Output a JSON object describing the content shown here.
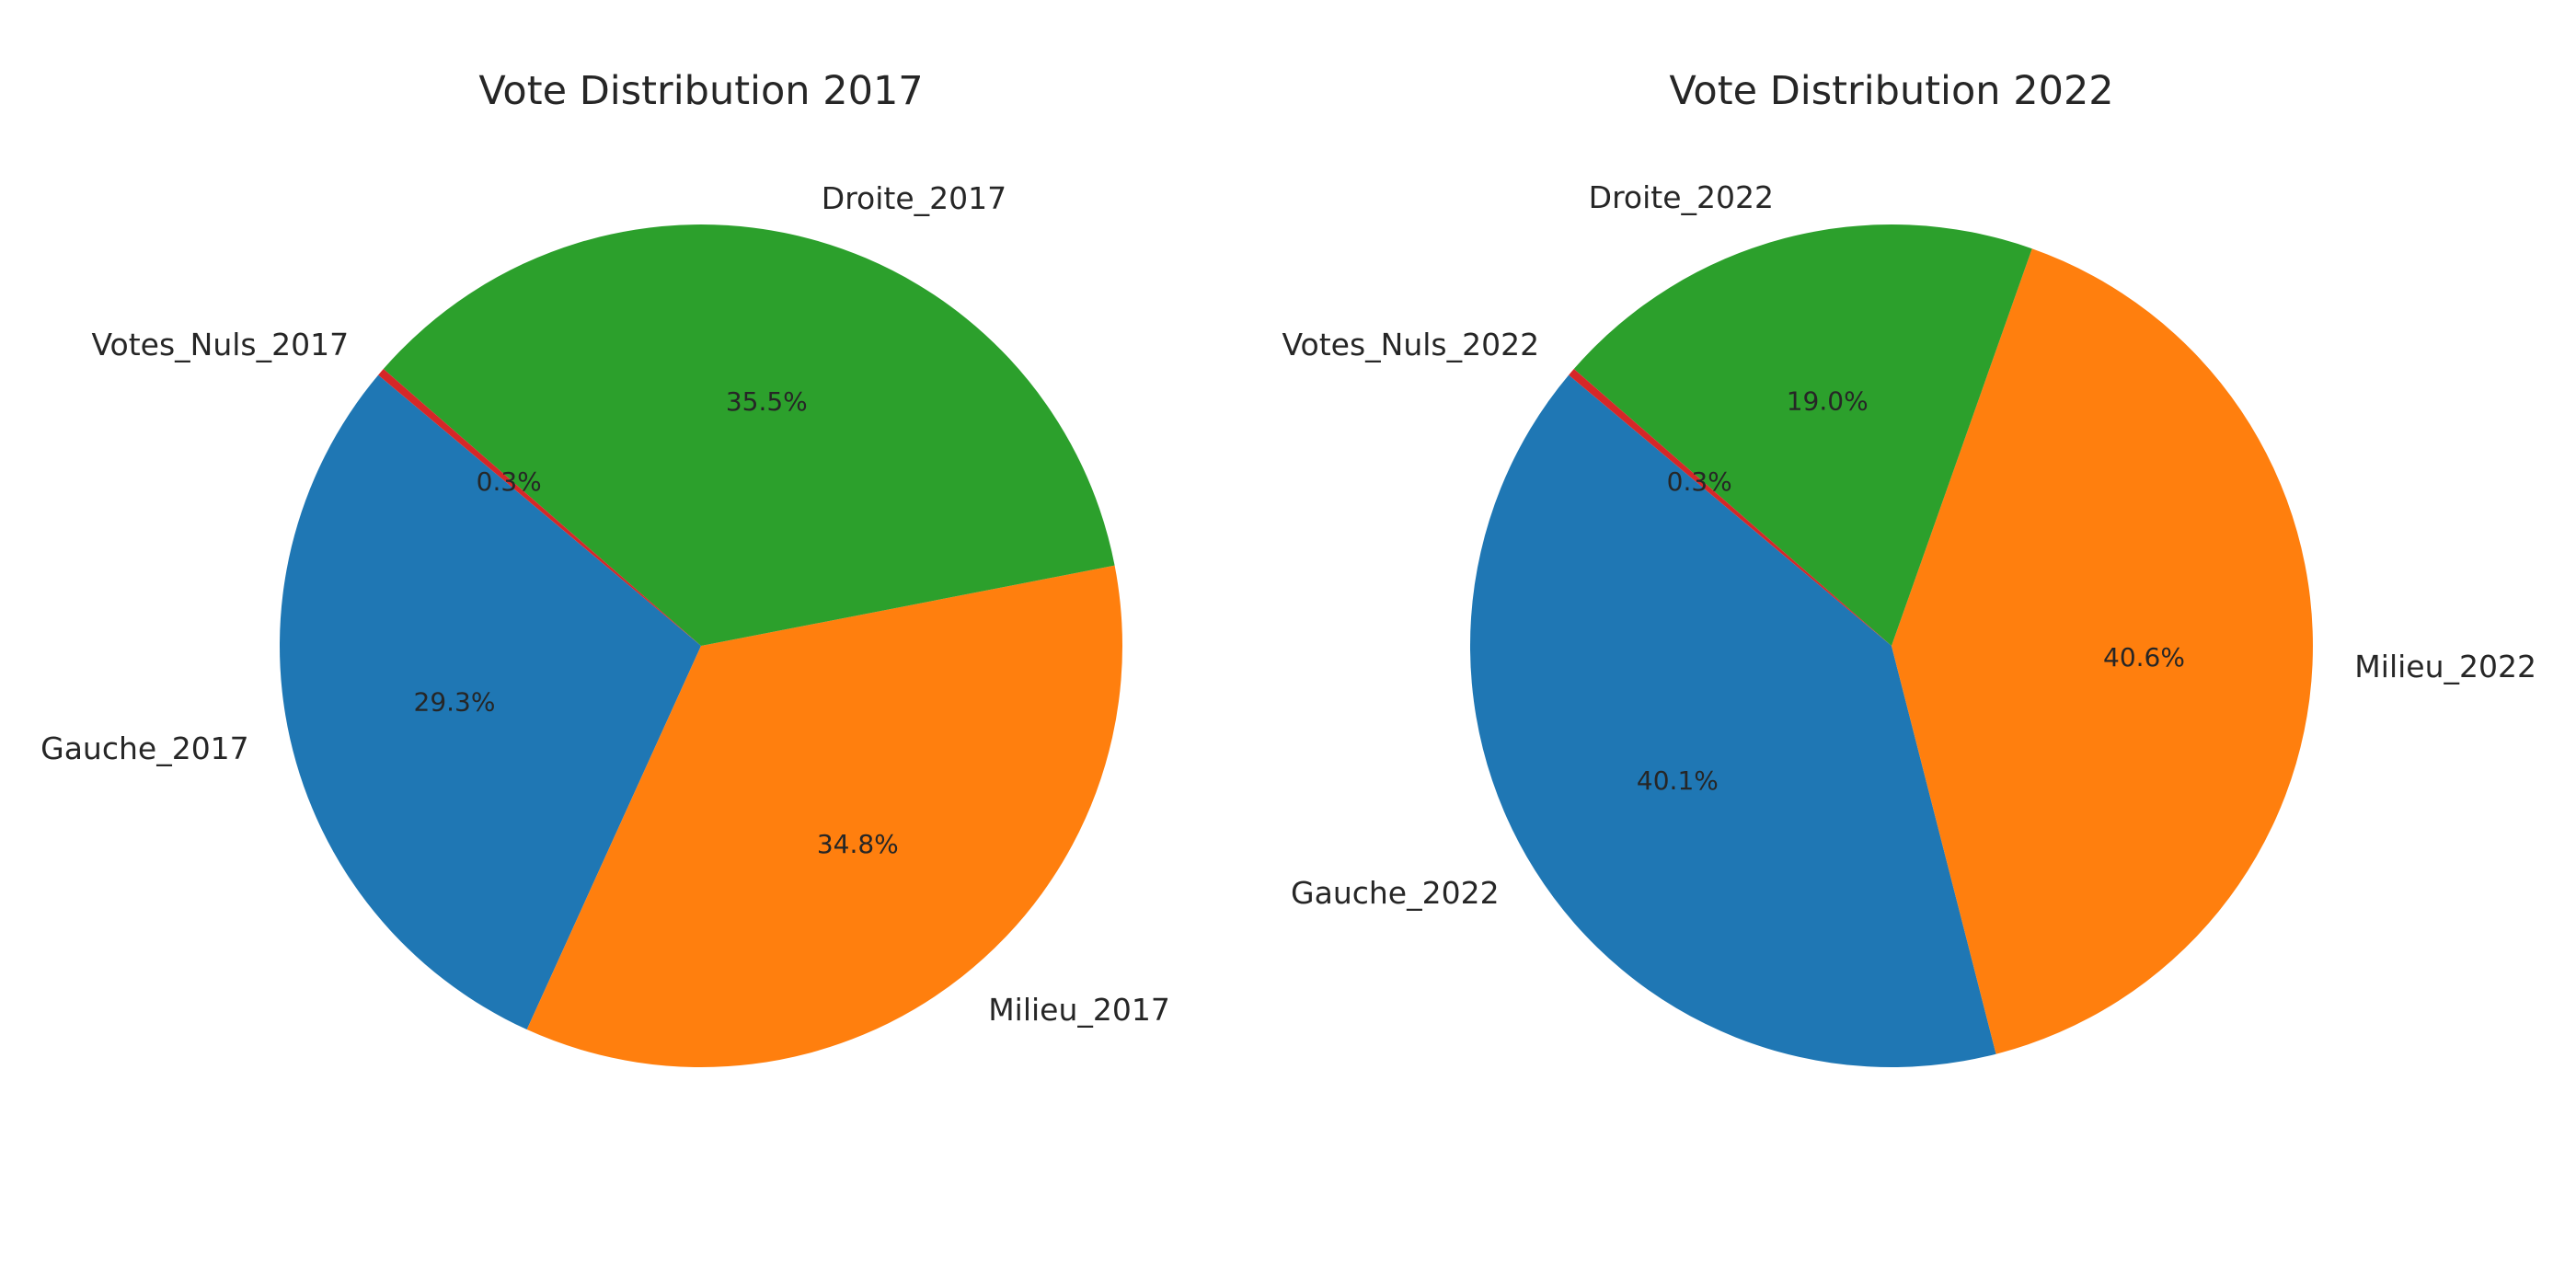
{
  "chart_data": [
    {
      "type": "pie",
      "title": "Vote Distribution 2017",
      "start_angle_deg": 140,
      "direction": "counterclockwise",
      "slices": [
        {
          "label": "Gauche_2017",
          "value": 29.3,
          "pct_label": "29.3%",
          "color": "#1f77b4"
        },
        {
          "label": "Milieu_2017",
          "value": 34.8,
          "pct_label": "34.8%",
          "color": "#ff7f0e"
        },
        {
          "label": "Droite_2017",
          "value": 35.5,
          "pct_label": "35.5%",
          "color": "#2ca02c"
        },
        {
          "label": "Votes_Nuls_2017",
          "value": 0.3,
          "pct_label": "0.3%",
          "color": "#d62728"
        }
      ]
    },
    {
      "type": "pie",
      "title": "Vote Distribution 2022",
      "start_angle_deg": 140,
      "direction": "counterclockwise",
      "slices": [
        {
          "label": "Gauche_2022",
          "value": 40.1,
          "pct_label": "40.1%",
          "color": "#1f77b4"
        },
        {
          "label": "Milieu_2022",
          "value": 40.6,
          "pct_label": "40.6%",
          "color": "#ff7f0e"
        },
        {
          "label": "Droite_2022",
          "value": 19.0,
          "pct_label": "19.0%",
          "color": "#2ca02c"
        },
        {
          "label": "Votes_Nuls_2022",
          "value": 0.3,
          "pct_label": "0.3%",
          "color": "#d62728"
        }
      ]
    }
  ]
}
